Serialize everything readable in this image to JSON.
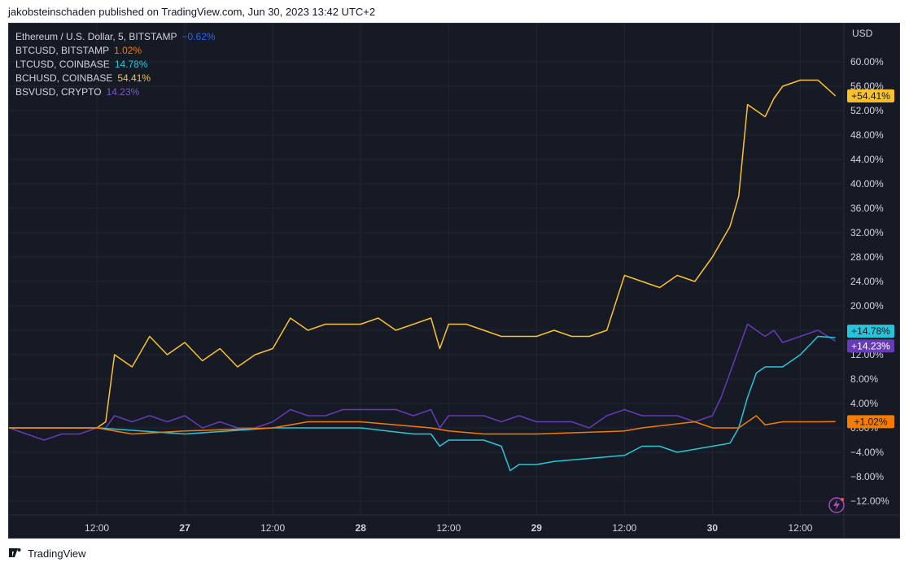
{
  "header": {
    "publisher_text": "jakobsteinschaden published on TradingView.com, Jun 30, 2023 13:42 UTC+2"
  },
  "footer": {
    "brand": "TradingView"
  },
  "legend": [
    {
      "label": "Ethereum / U.S. Dollar, 5, BITSTAMP",
      "value": "−0.62%",
      "color": "#2962ff"
    },
    {
      "label": "BTCUSD, BITSTAMP",
      "value": "1.02%",
      "color": "#f57c00"
    },
    {
      "label": "LTCUSD, COINBASE",
      "value": "14.78%",
      "color": "#26c6da"
    },
    {
      "label": "BCHUSD, COINBASE",
      "value": "54.41%",
      "color": "#fbc02d"
    },
    {
      "label": "BSVUSD, CRYPTO",
      "value": "14.23%",
      "color": "#673ab7"
    }
  ],
  "chart_data": {
    "type": "line",
    "title": "",
    "ylabel": "USD",
    "ylim": [
      -14,
      64
    ],
    "y_ticks": [
      "60.00%",
      "56.00%",
      "52.00%",
      "48.00%",
      "44.00%",
      "40.00%",
      "36.00%",
      "32.00%",
      "28.00%",
      "24.00%",
      "20.00%",
      "16.00%",
      "12.00%",
      "8.00%",
      "4.00%",
      "0.00%",
      "−4.00%",
      "−8.00%",
      "−12.00%"
    ],
    "y_tick_values": [
      60,
      56,
      52,
      48,
      44,
      40,
      36,
      32,
      28,
      24,
      20,
      16,
      12,
      8,
      4,
      0,
      -4,
      -8,
      -12
    ],
    "x_range": [
      0,
      4.72
    ],
    "x_ticks": [
      {
        "label": "12:00",
        "t": 0.5,
        "bold": false
      },
      {
        "label": "27",
        "t": 1.0,
        "bold": true
      },
      {
        "label": "12:00",
        "t": 1.5,
        "bold": false
      },
      {
        "label": "28",
        "t": 2.0,
        "bold": true
      },
      {
        "label": "12:00",
        "t": 2.5,
        "bold": false
      },
      {
        "label": "29",
        "t": 3.0,
        "bold": true
      },
      {
        "label": "12:00",
        "t": 3.5,
        "bold": false
      },
      {
        "label": "30",
        "t": 4.0,
        "bold": true
      },
      {
        "label": "12:00",
        "t": 4.5,
        "bold": false
      }
    ],
    "x_unit": "days from 26 Jun 00:00 (UTC+2), approx.",
    "series": [
      {
        "name": "BCHUSD, COINBASE",
        "color": "#fbc02d",
        "last_label": "+54.41%",
        "x": [
          0,
          0.5,
          0.55,
          0.6,
          0.7,
          0.8,
          0.9,
          1.0,
          1.1,
          1.2,
          1.3,
          1.4,
          1.5,
          1.6,
          1.7,
          1.8,
          1.9,
          2.0,
          2.1,
          2.2,
          2.3,
          2.4,
          2.45,
          2.5,
          2.6,
          2.7,
          2.8,
          2.9,
          3.0,
          3.1,
          3.2,
          3.3,
          3.4,
          3.5,
          3.6,
          3.7,
          3.8,
          3.9,
          4.0,
          4.1,
          4.15,
          4.2,
          4.25,
          4.3,
          4.35,
          4.4,
          4.5,
          4.6,
          4.7
        ],
        "y": [
          0,
          0,
          1,
          12,
          10,
          15,
          12,
          14,
          11,
          13,
          10,
          12,
          13,
          18,
          16,
          17,
          17,
          17,
          18,
          16,
          17,
          18,
          13,
          17,
          17,
          16,
          15,
          15,
          15,
          16,
          15,
          15,
          16,
          25,
          24,
          23,
          25,
          24,
          28,
          33,
          38,
          53,
          52,
          51,
          54,
          56,
          57,
          57,
          54.41
        ]
      },
      {
        "name": "BSVUSD, CRYPTO",
        "color": "#673ab7",
        "last_label": "+14.23%",
        "x": [
          0,
          0.1,
          0.2,
          0.3,
          0.4,
          0.5,
          0.55,
          0.6,
          0.7,
          0.8,
          0.9,
          1.0,
          1.1,
          1.2,
          1.3,
          1.4,
          1.5,
          1.6,
          1.7,
          1.8,
          1.9,
          2.0,
          2.1,
          2.2,
          2.3,
          2.4,
          2.45,
          2.5,
          2.6,
          2.7,
          2.8,
          2.9,
          3.0,
          3.1,
          3.2,
          3.3,
          3.4,
          3.5,
          3.6,
          3.7,
          3.8,
          3.9,
          4.0,
          4.05,
          4.1,
          4.15,
          4.2,
          4.25,
          4.3,
          4.35,
          4.4,
          4.5,
          4.6,
          4.7
        ],
        "y": [
          0,
          -1,
          -2,
          -1,
          -1,
          0,
          0,
          2,
          1,
          2,
          1,
          2,
          0,
          1,
          0,
          0,
          1,
          3,
          2,
          2,
          3,
          3,
          3,
          3,
          2,
          3,
          0,
          2,
          2,
          2,
          1,
          2,
          1,
          1,
          1,
          0,
          2,
          3,
          2,
          2,
          2,
          1,
          2,
          5,
          9,
          13,
          17,
          16,
          15,
          16,
          14,
          15,
          16,
          14.23
        ]
      },
      {
        "name": "LTCUSD, COINBASE",
        "color": "#26c6da",
        "last_label": "+14.78%",
        "x": [
          0,
          0.5,
          1.0,
          1.5,
          2.0,
          2.3,
          2.4,
          2.45,
          2.5,
          2.6,
          2.7,
          2.8,
          2.85,
          2.9,
          3.0,
          3.1,
          3.3,
          3.5,
          3.6,
          3.7,
          3.8,
          3.9,
          4.0,
          4.1,
          4.15,
          4.2,
          4.25,
          4.3,
          4.4,
          4.5,
          4.6,
          4.7
        ],
        "y": [
          0,
          0,
          -1,
          0,
          0,
          -1,
          -1,
          -3,
          -2,
          -2,
          -2,
          -3,
          -7,
          -6,
          -6,
          -5.5,
          -5,
          -4.5,
          -3,
          -3,
          -4,
          -3.5,
          -3,
          -2.5,
          0,
          5,
          9,
          10,
          10,
          12,
          15,
          14.78
        ]
      },
      {
        "name": "BTCUSD, BITSTAMP",
        "color": "#f57c00",
        "last_label": "+1.02%",
        "x": [
          0,
          0.5,
          0.7,
          1.0,
          1.5,
          1.6,
          1.7,
          2.0,
          2.4,
          2.5,
          2.7,
          3.0,
          3.5,
          3.6,
          3.9,
          4.0,
          4.15,
          4.2,
          4.25,
          4.3,
          4.4,
          4.5,
          4.6,
          4.7
        ],
        "y": [
          0,
          0,
          -1,
          -0.5,
          0,
          0.5,
          1,
          1,
          0,
          -0.5,
          -1,
          -1,
          -0.5,
          0,
          1,
          0,
          0,
          1,
          2,
          0.5,
          1,
          1,
          1,
          1.02
        ]
      }
    ]
  }
}
